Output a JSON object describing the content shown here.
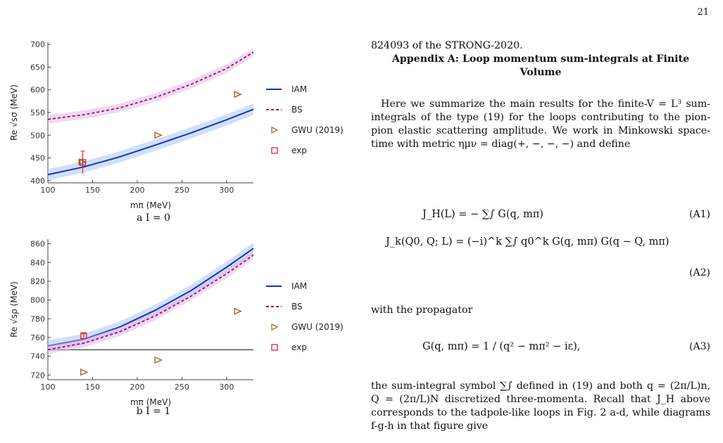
{
  "page_number": "21",
  "captions": {
    "a": "a I = 0",
    "b": "b I = 1"
  },
  "right_column": {
    "lead": "824093 of the STRONG-2020.",
    "appendix_title": "Appendix A: Loop momentum sum-integrals at Finite Volume",
    "para1": "Here we summarize the main results for the finite-V = L³ sum-integrals of the type (19) for the loops contributing to the pion-pion elastic scattering amplitude. We work in Minkowski space-time with metric ημν = diag(+, −, −, −) and define",
    "eq_A1": "J_H(L) = − ∑∫ G(q, mπ)",
    "eq_A2": "J_k(Q0, Q; L) = (−i)^k ∑∫ q0^k G(q, mπ) G(q − Q, mπ)",
    "eqnum_A1": "(A1)",
    "eqnum_A2": "(A2)",
    "eqnum_A3": "(A3)",
    "with_prop": "with the propagator",
    "eq_A3": "G(q, mπ) = 1 / (q² − mπ² − iε),",
    "para2": "the sum-integral symbol ∑∫ defined in (19) and both q = (2π/L)n, Q = (2π/L)N discretized three-momenta. Recall that J_H above corresponds to the tadpole-like loops in Fig. 2 a-d, while diagrams f-g-h in that figure give"
  },
  "chart_data": [
    {
      "type": "line",
      "xlabel": "mπ (MeV)",
      "ylabel": "Re √sσ (MeV)",
      "xlim": [
        100,
        330
      ],
      "ylim": [
        395,
        705
      ],
      "xticks": [
        100,
        150,
        200,
        250,
        300
      ],
      "yticks": [
        400,
        450,
        500,
        550,
        600,
        650,
        700
      ],
      "series": [
        {
          "name": "IAM",
          "style": "solid",
          "color": "#1830c8",
          "x": [
            100,
            140,
            180,
            220,
            260,
            300,
            330
          ],
          "y": [
            413,
            430,
            452,
            478,
            505,
            534,
            557
          ]
        },
        {
          "name": "BS",
          "style": "dashed",
          "color": "#8a1a6a",
          "x": [
            100,
            140,
            180,
            220,
            260,
            300,
            330
          ],
          "y": [
            535,
            545,
            560,
            583,
            612,
            647,
            683
          ]
        },
        {
          "name": "GWU (2019)",
          "style": "triangle",
          "color": "#b06a2a",
          "x": [
            138,
            223,
            312
          ],
          "y": [
            441,
            500,
            590
          ]
        },
        {
          "name": "exp",
          "style": "square",
          "color": "#e02020",
          "x": [
            139
          ],
          "y": [
            440
          ],
          "err": [
            25
          ]
        }
      ]
    },
    {
      "type": "line",
      "xlabel": "mπ (MeV)",
      "ylabel": "Re √sρ (MeV)",
      "xlim": [
        100,
        330
      ],
      "ylim": [
        715,
        865
      ],
      "xticks": [
        100,
        150,
        200,
        250,
        300
      ],
      "yticks": [
        720,
        740,
        760,
        780,
        800,
        820,
        840,
        860
      ],
      "hline": 747,
      "series": [
        {
          "name": "IAM",
          "style": "solid",
          "color": "#1830c8",
          "x": [
            100,
            140,
            180,
            220,
            260,
            300,
            330
          ],
          "y": [
            751,
            758,
            771,
            789,
            810,
            835,
            855
          ]
        },
        {
          "name": "BS",
          "style": "dashed",
          "color": "#8a1a6a",
          "x": [
            100,
            140,
            180,
            220,
            260,
            300,
            330
          ],
          "y": [
            747,
            754,
            766,
            783,
            804,
            828,
            848
          ]
        },
        {
          "name": "GWU (2019)",
          "style": "triangle",
          "color": "#b06a2a",
          "x": [
            140,
            223,
            312
          ],
          "y": [
            723,
            736,
            788
          ]
        },
        {
          "name": "exp",
          "style": "square",
          "color": "#e02020",
          "x": [
            140
          ],
          "y": [
            762
          ],
          "err": [
            2
          ]
        }
      ]
    }
  ]
}
